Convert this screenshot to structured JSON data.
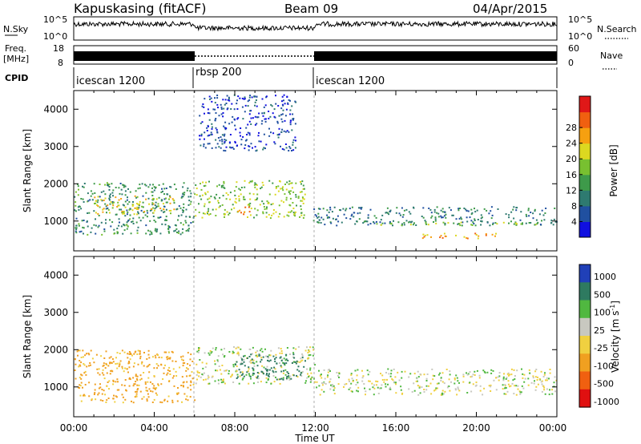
{
  "header": {
    "station": "Kapuskasing (fitACF)",
    "beam": "Beam 09",
    "date": "04/Apr/2015"
  },
  "top_panels": {
    "nsky_label": "N.Sky",
    "nsky_ticks": [
      "10^5",
      "10^0"
    ],
    "nsearch_label": "N.Search",
    "nsearch_ticks": [
      "10^5",
      "10^0"
    ],
    "freq_label": "Freq.",
    "freq_unit": "[MHz]",
    "freq_ticks": [
      "18",
      "8"
    ],
    "nave_label": "Nave",
    "nave_ticks": [
      "60",
      "0"
    ],
    "cpid_label": "CPID"
  },
  "cpid_segments": [
    {
      "name": "icescan 1200",
      "start": 0,
      "end": 6
    },
    {
      "name": "rbsp 200",
      "start": 6,
      "end": 12
    },
    {
      "name": "icescan 1200",
      "start": 12,
      "end": 24
    }
  ],
  "axes": {
    "xlabel": "Time UT",
    "x_ticks": [
      "00:00",
      "04:00",
      "08:00",
      "12:00",
      "16:00",
      "20:00",
      "00:00"
    ],
    "ylabel": "Slant Range [km]",
    "y_ticks": [
      "1000",
      "2000",
      "3000",
      "4000"
    ]
  },
  "power_colorbar": {
    "label": "Power [dB]",
    "ticks": [
      "4",
      "8",
      "12",
      "16",
      "20",
      "24",
      "28"
    ],
    "colors": [
      "#1010e0",
      "#2050a0",
      "#2e7a70",
      "#3e9a4a",
      "#78c030",
      "#dcd820",
      "#f6a010",
      "#f06010",
      "#e01818"
    ]
  },
  "velocity_colorbar": {
    "label": "Velocity [m s^-1]",
    "ticks": [
      "1000",
      "500",
      "100",
      "25",
      "-25",
      "-100",
      "-500",
      "-1000"
    ],
    "colors": [
      "#2040b8",
      "#2e7a60",
      "#50b840",
      "#c8c8c0",
      "#f0d040",
      "#f0a020",
      "#f06010",
      "#e01010"
    ]
  },
  "chart_data": {
    "type": "heatmap",
    "title": "Kapuskasing (fitACF) Beam 09 04/Apr/2015",
    "xlabel": "Time UT",
    "ylabel": "Slant Range [km]",
    "xlim": [
      0,
      24
    ],
    "ylim": [
      200,
      4500
    ],
    "x_ticks": [
      0,
      4,
      8,
      12,
      16,
      20,
      24
    ],
    "y_ticks": [
      1000,
      2000,
      3000,
      4000
    ],
    "frequency_mhz": {
      "segments": [
        {
          "start": 0,
          "end": 6,
          "value": "band 8-18"
        },
        {
          "start": 6,
          "end": 12,
          "value": "not plotted"
        },
        {
          "start": 12,
          "end": 24,
          "value": "band 8-18"
        }
      ]
    },
    "power_panel": {
      "colorbar": {
        "label": "Power [dB]",
        "ticks": [
          4,
          8,
          12,
          16,
          20,
          24,
          28
        ]
      },
      "echo_regions": [
        {
          "t_start": 0.0,
          "t_end": 6.0,
          "range_min": 650,
          "range_max": 2050,
          "power_db": 12
        },
        {
          "t_start": 1.0,
          "t_end": 5.0,
          "range_min": 1200,
          "range_max": 1700,
          "power_db": 22
        },
        {
          "t_start": 6.0,
          "t_end": 11.5,
          "range_min": 1100,
          "range_max": 2100,
          "power_db": 18
        },
        {
          "t_start": 7.7,
          "t_end": 8.8,
          "range_min": 1200,
          "range_max": 1400,
          "power_db": 28
        },
        {
          "t_start": 6.2,
          "t_end": 11.0,
          "range_min": 2900,
          "range_max": 4400,
          "power_db": 5
        },
        {
          "t_start": 11.8,
          "t_end": 24.0,
          "range_min": 900,
          "range_max": 1400,
          "power_db": 10
        },
        {
          "t_start": 15.0,
          "t_end": 23.5,
          "range_min": 900,
          "range_max": 1000,
          "power_db": 18
        },
        {
          "t_start": 17.0,
          "t_end": 21.0,
          "range_min": 550,
          "range_max": 700,
          "power_db": 26
        }
      ]
    },
    "velocity_panel": {
      "colorbar": {
        "label": "Velocity [m s^-1]",
        "ticks": [
          1000,
          500,
          100,
          25,
          -25,
          -100,
          -500,
          -1000
        ]
      },
      "echo_regions": [
        {
          "t_start": 0.0,
          "t_end": 6.0,
          "range_min": 600,
          "range_max": 2000,
          "velocity": -150
        },
        {
          "t_start": 6.0,
          "t_end": 12.0,
          "range_min": 1100,
          "range_max": 2100,
          "velocity": 0
        },
        {
          "t_start": 8.0,
          "t_end": 11.5,
          "range_min": 1200,
          "range_max": 1900,
          "velocity": 200
        },
        {
          "t_start": 12.0,
          "t_end": 24.0,
          "range_min": 800,
          "range_max": 1500,
          "velocity": 0
        }
      ]
    }
  }
}
